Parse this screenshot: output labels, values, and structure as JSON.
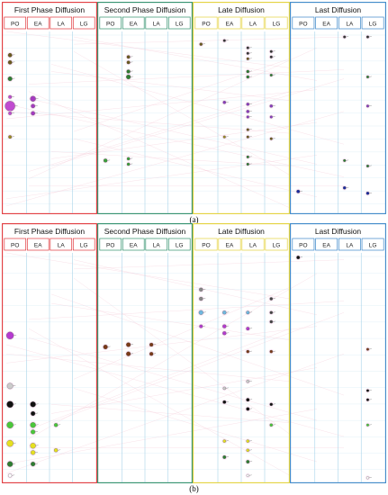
{
  "colors": {
    "first_phase": "#e0363a",
    "second_phase": "#2f8f6b",
    "late": "#e3d23a",
    "last": "#3a86c8",
    "grid": "#a8d4ea",
    "pink_line": "#f3c4d2"
  },
  "panel_a": {
    "caption": "(a)",
    "phases": [
      {
        "title": "First  Phase  Diffusion",
        "color": "#e0363a",
        "columns": [
          "PO",
          "EA",
          "LA",
          "LG"
        ]
      },
      {
        "title": "Second Phase  Diffusion",
        "color": "#2f8f6b",
        "columns": [
          "PO",
          "EA",
          "LA",
          "LG"
        ]
      },
      {
        "title": "Late Diffusion",
        "color": "#e3d23a",
        "columns": [
          "PO",
          "EA",
          "LA",
          "LG"
        ]
      },
      {
        "title": "Last Diffusion",
        "color": "#3a86c8",
        "columns": [
          "PO",
          "EA",
          "LA",
          "LG"
        ]
      }
    ],
    "nodes": [
      {
        "phase": 0,
        "col": 0,
        "row": 0.13,
        "size": 2.2,
        "color": "#6b5a1e"
      },
      {
        "phase": 0,
        "col": 0,
        "row": 0.17,
        "size": 2.2,
        "color": "#6b5a1e"
      },
      {
        "phase": 0,
        "col": 0,
        "row": 0.26,
        "size": 2.4,
        "color": "#2e7d32"
      },
      {
        "phase": 0,
        "col": 0,
        "row": 0.41,
        "size": 5.5,
        "color": "#c04bd0"
      },
      {
        "phase": 0,
        "col": 0,
        "row": 0.36,
        "size": 1.8,
        "color": "#c04bd0"
      },
      {
        "phase": 0,
        "col": 0,
        "row": 0.45,
        "size": 1.8,
        "color": "#c04bd0"
      },
      {
        "phase": 0,
        "col": 0,
        "row": 0.58,
        "size": 1.8,
        "color": "#9a8a20"
      },
      {
        "phase": 0,
        "col": 1,
        "row": 0.37,
        "size": 3.0,
        "color": "#a53ac0"
      },
      {
        "phase": 0,
        "col": 1,
        "row": 0.41,
        "size": 2.2,
        "color": "#a53ac0"
      },
      {
        "phase": 0,
        "col": 1,
        "row": 0.45,
        "size": 2.2,
        "color": "#a53ac0"
      },
      {
        "phase": 1,
        "col": 1,
        "row": 0.14,
        "size": 1.8,
        "color": "#6b5a1e"
      },
      {
        "phase": 1,
        "col": 1,
        "row": 0.17,
        "size": 1.8,
        "color": "#6b5a1e"
      },
      {
        "phase": 1,
        "col": 1,
        "row": 0.22,
        "size": 2.0,
        "color": "#2e7d32"
      },
      {
        "phase": 1,
        "col": 1,
        "row": 0.25,
        "size": 2.4,
        "color": "#2e7d32"
      },
      {
        "phase": 1,
        "col": 0,
        "row": 0.71,
        "size": 2.0,
        "color": "#3aa03a"
      },
      {
        "phase": 1,
        "col": 1,
        "row": 0.7,
        "size": 1.6,
        "color": "#3aa03a"
      },
      {
        "phase": 1,
        "col": 1,
        "row": 0.73,
        "size": 1.6,
        "color": "#3aa03a"
      },
      {
        "phase": 2,
        "col": 0,
        "row": 0.07,
        "size": 1.6,
        "color": "#6b5a1e"
      },
      {
        "phase": 2,
        "col": 1,
        "row": 0.05,
        "size": 1.4,
        "color": "#333333"
      },
      {
        "phase": 2,
        "col": 2,
        "row": 0.09,
        "size": 1.4,
        "color": "#333333"
      },
      {
        "phase": 2,
        "col": 2,
        "row": 0.12,
        "size": 1.4,
        "color": "#333333"
      },
      {
        "phase": 2,
        "col": 2,
        "row": 0.15,
        "size": 1.4,
        "color": "#6b5a1e"
      },
      {
        "phase": 2,
        "col": 3,
        "row": 0.11,
        "size": 1.4,
        "color": "#333333"
      },
      {
        "phase": 2,
        "col": 3,
        "row": 0.14,
        "size": 1.4,
        "color": "#333333"
      },
      {
        "phase": 2,
        "col": 2,
        "row": 0.22,
        "size": 1.6,
        "color": "#2e7d32"
      },
      {
        "phase": 2,
        "col": 2,
        "row": 0.25,
        "size": 1.6,
        "color": "#2e7d32"
      },
      {
        "phase": 2,
        "col": 3,
        "row": 0.24,
        "size": 1.4,
        "color": "#2e7d32"
      },
      {
        "phase": 2,
        "col": 1,
        "row": 0.39,
        "size": 1.6,
        "color": "#8a3ac0"
      },
      {
        "phase": 2,
        "col": 2,
        "row": 0.4,
        "size": 1.6,
        "color": "#8a3ac0"
      },
      {
        "phase": 2,
        "col": 2,
        "row": 0.44,
        "size": 1.6,
        "color": "#8a3ac0"
      },
      {
        "phase": 2,
        "col": 3,
        "row": 0.41,
        "size": 1.6,
        "color": "#8a3ac0"
      },
      {
        "phase": 2,
        "col": 2,
        "row": 0.47,
        "size": 1.4,
        "color": "#8a3ac0"
      },
      {
        "phase": 2,
        "col": 3,
        "row": 0.47,
        "size": 1.4,
        "color": "#8a3ac0"
      },
      {
        "phase": 2,
        "col": 1,
        "row": 0.58,
        "size": 1.4,
        "color": "#9a8a20"
      },
      {
        "phase": 2,
        "col": 2,
        "row": 0.54,
        "size": 1.4,
        "color": "#6b5a1e"
      },
      {
        "phase": 2,
        "col": 2,
        "row": 0.58,
        "size": 1.4,
        "color": "#6b5a1e"
      },
      {
        "phase": 2,
        "col": 3,
        "row": 0.59,
        "size": 1.4,
        "color": "#6b5a1e"
      },
      {
        "phase": 2,
        "col": 2,
        "row": 0.69,
        "size": 1.4,
        "color": "#2e7d32"
      },
      {
        "phase": 2,
        "col": 2,
        "row": 0.73,
        "size": 1.4,
        "color": "#2e7d32"
      },
      {
        "phase": 3,
        "col": 2,
        "row": 0.03,
        "size": 1.4,
        "color": "#333333"
      },
      {
        "phase": 3,
        "col": 3,
        "row": 0.03,
        "size": 1.4,
        "color": "#333333"
      },
      {
        "phase": 3,
        "col": 3,
        "row": 0.25,
        "size": 1.4,
        "color": "#2e7d32"
      },
      {
        "phase": 3,
        "col": 3,
        "row": 0.41,
        "size": 1.4,
        "color": "#8a3ac0"
      },
      {
        "phase": 3,
        "col": 2,
        "row": 0.71,
        "size": 1.4,
        "color": "#2e7d32"
      },
      {
        "phase": 3,
        "col": 3,
        "row": 0.74,
        "size": 1.4,
        "color": "#2e7d32"
      },
      {
        "phase": 3,
        "col": 0,
        "row": 0.88,
        "size": 1.8,
        "color": "#1a2aa0"
      },
      {
        "phase": 3,
        "col": 2,
        "row": 0.86,
        "size": 1.6,
        "color": "#1a2aa0"
      },
      {
        "phase": 3,
        "col": 3,
        "row": 0.89,
        "size": 1.6,
        "color": "#1a2aa0"
      }
    ]
  },
  "panel_b": {
    "caption": "(b)",
    "phases": [
      {
        "title": "First Phase Diffusion",
        "color": "#e0363a",
        "columns": [
          "PO",
          "EA",
          "LA",
          "LG"
        ]
      },
      {
        "title": "Second Phase  Diffusion",
        "color": "#2f8f6b",
        "columns": [
          "PO",
          "EA",
          "LA",
          "LG"
        ]
      },
      {
        "title": "Late Diffusion",
        "color": "#e3d23a",
        "columns": [
          "PO",
          "EA",
          "LA",
          "LG"
        ]
      },
      {
        "title": "Last Diffusion",
        "color": "#3a86c8",
        "columns": [
          "PO",
          "EA",
          "LA",
          "LG"
        ]
      }
    ],
    "nodes": [
      {
        "phase": 0,
        "col": 0,
        "row": 0.36,
        "size": 4.0,
        "color": "#b53ad0"
      },
      {
        "phase": 0,
        "col": 0,
        "row": 0.58,
        "size": 3.2,
        "color": "#cccccc"
      },
      {
        "phase": 0,
        "col": 0,
        "row": 0.66,
        "size": 3.6,
        "color": "#111111"
      },
      {
        "phase": 0,
        "col": 1,
        "row": 0.66,
        "size": 3.0,
        "color": "#111111"
      },
      {
        "phase": 0,
        "col": 1,
        "row": 0.7,
        "size": 2.4,
        "color": "#111111"
      },
      {
        "phase": 0,
        "col": 0,
        "row": 0.75,
        "size": 3.6,
        "color": "#4ac73a"
      },
      {
        "phase": 0,
        "col": 1,
        "row": 0.75,
        "size": 3.0,
        "color": "#4ac73a"
      },
      {
        "phase": 0,
        "col": 1,
        "row": 0.78,
        "size": 2.4,
        "color": "#4ac73a"
      },
      {
        "phase": 0,
        "col": 2,
        "row": 0.75,
        "size": 2.0,
        "color": "#4ac73a"
      },
      {
        "phase": 0,
        "col": 0,
        "row": 0.83,
        "size": 3.6,
        "color": "#e6e020"
      },
      {
        "phase": 0,
        "col": 1,
        "row": 0.84,
        "size": 3.0,
        "color": "#e6e020"
      },
      {
        "phase": 0,
        "col": 1,
        "row": 0.87,
        "size": 2.4,
        "color": "#e6e020"
      },
      {
        "phase": 0,
        "col": 2,
        "row": 0.86,
        "size": 2.0,
        "color": "#e6e020"
      },
      {
        "phase": 0,
        "col": 0,
        "row": 0.92,
        "size": 3.0,
        "color": "#2e7d32"
      },
      {
        "phase": 0,
        "col": 1,
        "row": 0.92,
        "size": 2.4,
        "color": "#2e7d32"
      },
      {
        "phase": 0,
        "col": 0,
        "row": 0.97,
        "size": 2.0,
        "color": "#ffffff"
      },
      {
        "phase": 1,
        "col": 0,
        "row": 0.41,
        "size": 2.4,
        "color": "#7a3a18"
      },
      {
        "phase": 1,
        "col": 1,
        "row": 0.4,
        "size": 2.4,
        "color": "#7a3a18"
      },
      {
        "phase": 1,
        "col": 1,
        "row": 0.44,
        "size": 2.4,
        "color": "#7a3a18"
      },
      {
        "phase": 1,
        "col": 2,
        "row": 0.4,
        "size": 2.0,
        "color": "#7a3a18"
      },
      {
        "phase": 1,
        "col": 2,
        "row": 0.44,
        "size": 2.0,
        "color": "#7a3a18"
      },
      {
        "phase": 2,
        "col": 0,
        "row": 0.16,
        "size": 2.0,
        "color": "#888888"
      },
      {
        "phase": 2,
        "col": 0,
        "row": 0.2,
        "size": 2.0,
        "color": "#888888"
      },
      {
        "phase": 2,
        "col": 0,
        "row": 0.26,
        "size": 2.4,
        "color": "#6fb8e0"
      },
      {
        "phase": 2,
        "col": 1,
        "row": 0.26,
        "size": 2.0,
        "color": "#6fb8e0"
      },
      {
        "phase": 2,
        "col": 2,
        "row": 0.26,
        "size": 1.8,
        "color": "#6fb8e0"
      },
      {
        "phase": 2,
        "col": 0,
        "row": 0.32,
        "size": 1.8,
        "color": "#b53ad0"
      },
      {
        "phase": 2,
        "col": 1,
        "row": 0.32,
        "size": 2.0,
        "color": "#b53ad0"
      },
      {
        "phase": 2,
        "col": 1,
        "row": 0.35,
        "size": 2.0,
        "color": "#b53ad0"
      },
      {
        "phase": 2,
        "col": 2,
        "row": 0.33,
        "size": 1.8,
        "color": "#b53ad0"
      },
      {
        "phase": 2,
        "col": 3,
        "row": 0.2,
        "size": 1.6,
        "color": "#444444"
      },
      {
        "phase": 2,
        "col": 3,
        "row": 0.26,
        "size": 1.6,
        "color": "#444444"
      },
      {
        "phase": 2,
        "col": 3,
        "row": 0.3,
        "size": 1.6,
        "color": "#444444"
      },
      {
        "phase": 2,
        "col": 2,
        "row": 0.43,
        "size": 1.6,
        "color": "#7a3a18"
      },
      {
        "phase": 2,
        "col": 3,
        "row": 0.43,
        "size": 1.6,
        "color": "#7a3a18"
      },
      {
        "phase": 2,
        "col": 1,
        "row": 0.59,
        "size": 1.6,
        "color": "#cccccc"
      },
      {
        "phase": 2,
        "col": 2,
        "row": 0.56,
        "size": 1.6,
        "color": "#cccccc"
      },
      {
        "phase": 2,
        "col": 1,
        "row": 0.65,
        "size": 1.8,
        "color": "#111111"
      },
      {
        "phase": 2,
        "col": 2,
        "row": 0.64,
        "size": 1.8,
        "color": "#111111"
      },
      {
        "phase": 2,
        "col": 2,
        "row": 0.68,
        "size": 1.8,
        "color": "#111111"
      },
      {
        "phase": 2,
        "col": 3,
        "row": 0.66,
        "size": 1.6,
        "color": "#111111"
      },
      {
        "phase": 2,
        "col": 3,
        "row": 0.75,
        "size": 1.6,
        "color": "#4ac73a"
      },
      {
        "phase": 2,
        "col": 1,
        "row": 0.82,
        "size": 1.6,
        "color": "#e6e020"
      },
      {
        "phase": 2,
        "col": 2,
        "row": 0.82,
        "size": 1.6,
        "color": "#e6e020"
      },
      {
        "phase": 2,
        "col": 2,
        "row": 0.86,
        "size": 1.6,
        "color": "#e6e020"
      },
      {
        "phase": 2,
        "col": 1,
        "row": 0.89,
        "size": 1.8,
        "color": "#2e7d32"
      },
      {
        "phase": 2,
        "col": 2,
        "row": 0.91,
        "size": 1.8,
        "color": "#2e7d32"
      },
      {
        "phase": 2,
        "col": 2,
        "row": 0.97,
        "size": 1.4,
        "color": "#ffffff"
      },
      {
        "phase": 3,
        "col": 0,
        "row": 0.02,
        "size": 1.8,
        "color": "#111111"
      },
      {
        "phase": 3,
        "col": 3,
        "row": 0.42,
        "size": 1.4,
        "color": "#7a3a18"
      },
      {
        "phase": 3,
        "col": 3,
        "row": 0.6,
        "size": 1.4,
        "color": "#111111"
      },
      {
        "phase": 3,
        "col": 3,
        "row": 0.64,
        "size": 1.4,
        "color": "#111111"
      },
      {
        "phase": 3,
        "col": 3,
        "row": 0.75,
        "size": 1.4,
        "color": "#4ac73a"
      },
      {
        "phase": 3,
        "col": 3,
        "row": 0.98,
        "size": 1.4,
        "color": "#ffffff"
      }
    ]
  }
}
